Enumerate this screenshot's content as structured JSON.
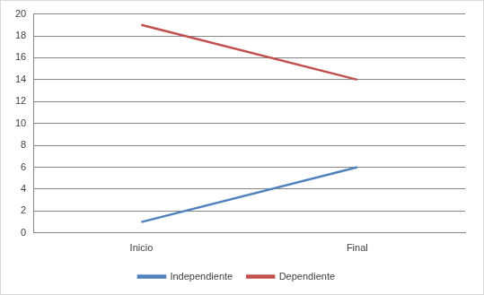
{
  "chart_data": {
    "type": "line",
    "categories": [
      "Inicio",
      "Final"
    ],
    "series": [
      {
        "name": "Independiente",
        "color": "#4f81bd",
        "values": [
          1,
          6
        ]
      },
      {
        "name": "Dependiente",
        "color": "#c0504d",
        "values": [
          19,
          14
        ]
      }
    ],
    "ylim": [
      0,
      20
    ],
    "yticks": [
      0,
      2,
      4,
      6,
      8,
      10,
      12,
      14,
      16,
      18,
      20
    ],
    "grid": true,
    "legend": "bottom"
  }
}
